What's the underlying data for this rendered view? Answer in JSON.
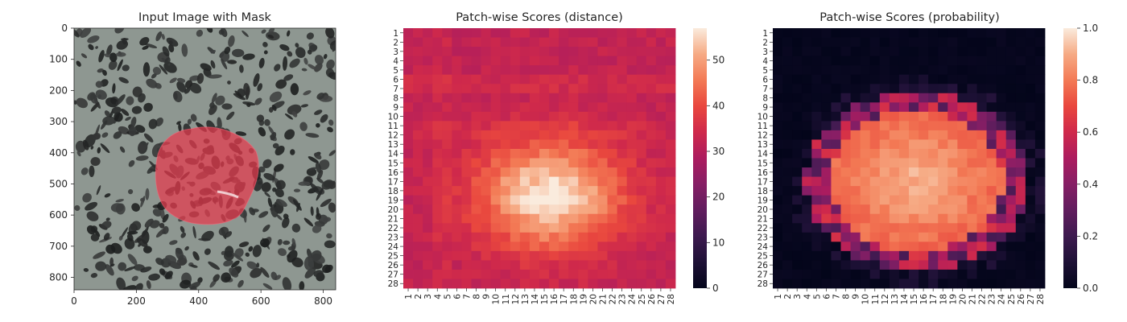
{
  "chart_data": [
    {
      "type": "image",
      "title": "Input Image with Mask",
      "x_ticks": [
        "0",
        "200",
        "400",
        "600",
        "800"
      ],
      "x_tick_values": [
        0,
        200,
        400,
        600,
        800
      ],
      "y_ticks": [
        "0",
        "100",
        "200",
        "300",
        "400",
        "500",
        "600",
        "700",
        "800"
      ],
      "y_tick_values": [
        0,
        100,
        200,
        300,
        400,
        500,
        600,
        700,
        800
      ],
      "xlim": [
        0,
        840
      ],
      "ylim": [
        840,
        0
      ],
      "mask_color": "#e83a4e",
      "mask_center": [
        430,
        475
      ],
      "mask_approx_radii": [
        165,
        185
      ]
    },
    {
      "type": "heatmap",
      "title": "Patch-wise Scores (distance)",
      "labels": [
        "1",
        "2",
        "3",
        "4",
        "5",
        "6",
        "7",
        "8",
        "9",
        "10",
        "11",
        "12",
        "13",
        "14",
        "15",
        "16",
        "17",
        "18",
        "19",
        "20",
        "21",
        "22",
        "23",
        "24",
        "25",
        "26",
        "27",
        "28"
      ],
      "colorbar": {
        "ticks": [
          "0",
          "10",
          "20",
          "30",
          "40",
          "50"
        ],
        "tick_values": [
          0,
          10,
          20,
          30,
          40,
          50
        ],
        "vmin": 0,
        "vmax": 57,
        "colormap": "rocket"
      },
      "model": {
        "center": [
          15.6,
          18.5
        ],
        "sigma": [
          5.2,
          4.0
        ],
        "peak": 57,
        "base": 32,
        "lift": 25,
        "spread": 0.06,
        "row_shift_bands": [
          [
            6,
            7,
            2
          ],
          [
            11,
            12,
            1.5
          ]
        ],
        "col_shift_bands": [
          [
            4,
            5,
            1.5
          ]
        ]
      }
    },
    {
      "type": "heatmap",
      "title": "Patch-wise Scores (probability)",
      "labels": [
        "1",
        "2",
        "3",
        "4",
        "5",
        "6",
        "7",
        "8",
        "9",
        "10",
        "11",
        "12",
        "13",
        "14",
        "15",
        "16",
        "17",
        "18",
        "19",
        "20",
        "21",
        "22",
        "23",
        "24",
        "25",
        "26",
        "27",
        "28"
      ],
      "colorbar": {
        "ticks": [
          "0.0",
          "0.2",
          "0.4",
          "0.6",
          "0.8",
          "1.0"
        ],
        "tick_values": [
          0,
          0.2,
          0.4,
          0.6,
          0.8,
          1.0
        ],
        "vmin": 0,
        "vmax": 1,
        "colormap": "rocket"
      },
      "model": {
        "center": [
          15.3,
          17.0
        ],
        "radii": [
          10.2,
          8.6
        ],
        "inside_level": 0.75,
        "peak_level": 0.9,
        "edge_band": 0.12
      }
    }
  ]
}
